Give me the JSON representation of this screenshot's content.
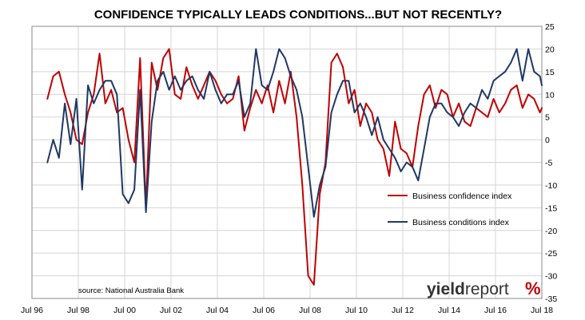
{
  "chart_data": {
    "type": "line",
    "title": "CONFIDENCE TYPICALLY LEADS CONDITIONS...BUT NOT RECENTLY?",
    "xlabel": "",
    "ylabel": "",
    "x_tick_labels": [
      "Jul 96",
      "Jul 98",
      "Jul 00",
      "Jul 02",
      "Jul 04",
      "Jul 06",
      "Jul 08",
      "Jul 10",
      "Jul 12",
      "Jul 14",
      "Jul 16",
      "Jul 18"
    ],
    "x_range": [
      "1996-07",
      "2018-07"
    ],
    "ylim": [
      -35,
      25
    ],
    "y_ticks": [
      25,
      20,
      15,
      10,
      5,
      0,
      -5,
      -10,
      -15,
      -20,
      -25,
      -30,
      -35
    ],
    "y_axis_side": "right",
    "grid": true,
    "legend_position": "center-right",
    "x": [
      "1997-03",
      "1997-06",
      "1997-09",
      "1997-12",
      "1998-03",
      "1998-06",
      "1998-09",
      "1998-12",
      "1999-03",
      "1999-06",
      "1999-09",
      "1999-12",
      "2000-03",
      "2000-06",
      "2000-09",
      "2000-12",
      "2001-03",
      "2001-06",
      "2001-09",
      "2001-12",
      "2002-03",
      "2002-06",
      "2002-09",
      "2002-12",
      "2003-03",
      "2003-06",
      "2003-09",
      "2003-12",
      "2004-03",
      "2004-06",
      "2004-09",
      "2004-12",
      "2005-03",
      "2005-06",
      "2005-09",
      "2005-12",
      "2006-03",
      "2006-06",
      "2006-09",
      "2006-12",
      "2007-03",
      "2007-06",
      "2007-09",
      "2007-12",
      "2008-03",
      "2008-06",
      "2008-09",
      "2008-12",
      "2009-03",
      "2009-06",
      "2009-09",
      "2009-12",
      "2010-03",
      "2010-06",
      "2010-09",
      "2010-12",
      "2011-03",
      "2011-06",
      "2011-09",
      "2011-12",
      "2012-03",
      "2012-06",
      "2012-09",
      "2012-12",
      "2013-03",
      "2013-06",
      "2013-09",
      "2013-12",
      "2014-03",
      "2014-06",
      "2014-09",
      "2014-12",
      "2015-03",
      "2015-06",
      "2015-09",
      "2015-12",
      "2016-03",
      "2016-06",
      "2016-09",
      "2016-12",
      "2017-03",
      "2017-06",
      "2017-09",
      "2017-12",
      "2018-03",
      "2018-06",
      "2018-07"
    ],
    "series": [
      {
        "name": "Business confidence index",
        "color": "#c00000",
        "values": [
          9,
          14,
          15,
          10,
          6,
          0,
          -1,
          6,
          10,
          19,
          8,
          11,
          6,
          7,
          0,
          -5,
          18,
          -15,
          17,
          11,
          18,
          20,
          10,
          9,
          16,
          12,
          9,
          12,
          15,
          13,
          10,
          8,
          9,
          14,
          2,
          7,
          11,
          8,
          12,
          6,
          13,
          8,
          15,
          5,
          -10,
          -30,
          -32,
          -12,
          -5,
          17,
          19,
          16,
          8,
          11,
          3,
          8,
          6,
          0,
          -2,
          -8,
          4,
          -2,
          -3,
          -6,
          3,
          10,
          12,
          7,
          11,
          10,
          5,
          8,
          4,
          3,
          7,
          6,
          5,
          9,
          6,
          8,
          11,
          12,
          7,
          10,
          9,
          6,
          7
        ]
      },
      {
        "name": "Business conditions index",
        "color": "#1f3864",
        "values": [
          -5,
          0,
          -4,
          8,
          -1,
          9,
          -11,
          12,
          8,
          11,
          13,
          13,
          10,
          -12,
          -14,
          -11,
          11,
          -16,
          4,
          13,
          15,
          11,
          14,
          11,
          13,
          14,
          11,
          9,
          15,
          11,
          8,
          10,
          10,
          13,
          5,
          8,
          20,
          12,
          11,
          15,
          20,
          18,
          14,
          11,
          5,
          -6,
          -17,
          -10,
          -6,
          6,
          10,
          13,
          13,
          6,
          8,
          5,
          1,
          5,
          0,
          -2,
          -4,
          -7,
          -5,
          -6,
          -9,
          -2,
          5,
          8,
          8,
          6,
          5,
          3,
          6,
          8,
          7,
          11,
          9,
          13,
          14,
          15,
          17,
          20,
          13,
          20,
          15,
          14,
          12
        ]
      }
    ],
    "annotations": {
      "source": "source: National Australia Bank",
      "logo_bold": "yield",
      "logo_light": "report",
      "logo_symbol": "%"
    }
  }
}
